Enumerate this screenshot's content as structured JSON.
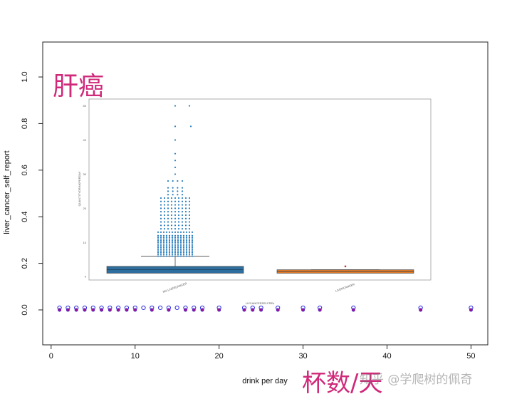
{
  "overlay": {
    "title_top": "肝癌",
    "title_bottom": "杯数/天",
    "watermark": "知乎 @学爬树的佩奇"
  },
  "colors": {
    "title_accent": "#d0297a",
    "point_outline": "#2a2ae0",
    "point_fill": "#a0108f",
    "box_blue": "#2f6f9f",
    "box_orange": "#e07a28",
    "scatter_blue": "#2b7fbf"
  },
  "chart_data": [
    {
      "type": "scatter",
      "xlabel": "drink per day",
      "ylabel": "liver_cancer_self_report",
      "xlim": [
        -1,
        52
      ],
      "ylim": [
        -0.15,
        1.15
      ],
      "xticks": [
        0,
        10,
        20,
        30,
        40,
        50
      ],
      "yticks": [
        0.0,
        0.2,
        0.4,
        0.6,
        0.8,
        1.0
      ],
      "xtick_labels": [
        "0",
        "10",
        "20",
        "30",
        "40",
        "50"
      ],
      "ytick_labels": [
        "0.0",
        "0.2",
        "0.4",
        "0.6",
        "0.8",
        "1.0"
      ],
      "points_outline": [
        1,
        2,
        3,
        4,
        5,
        6,
        7,
        8,
        9,
        10,
        11,
        12,
        13,
        14,
        15,
        16,
        17,
        18,
        20,
        23,
        24,
        25,
        27,
        30,
        32,
        36,
        44,
        50
      ],
      "points_filled": [
        1,
        2,
        3,
        4,
        5,
        6,
        7,
        8,
        9,
        10,
        12,
        14,
        16,
        17,
        18,
        20,
        23,
        24,
        25,
        27,
        30,
        32,
        36,
        44,
        50
      ],
      "y": 0.0
    },
    {
      "type": "box",
      "xlabel": "LIVCANCERSELFREk",
      "ylabel": "QUANTITYDRINKPERDAY",
      "categories": [
        "NO LIVERCANCER",
        "LIVERCANCER"
      ],
      "ylim": [
        -1,
        52
      ],
      "yticks": [
        0,
        10,
        20,
        30,
        40,
        50
      ],
      "ytick_labels": [
        "0",
        "10",
        "20",
        "30",
        "40",
        "50"
      ],
      "boxes": [
        {
          "name": "NO LIVERCANCER",
          "q1": 1,
          "median": 2,
          "q3": 3,
          "whisker_low": 1,
          "whisker_high": 6
        },
        {
          "name": "LIVERCANCER",
          "q1": 1,
          "median": 1.5,
          "q3": 2,
          "whisker_low": 1,
          "whisker_high": 2
        }
      ],
      "outliers_no_cancer": [
        6,
        6.5,
        7,
        7.5,
        8,
        8.5,
        9,
        9.5,
        10,
        10.5,
        11,
        11.5,
        12,
        13,
        14,
        15,
        16,
        17,
        18,
        19,
        20,
        21,
        22,
        23,
        24,
        25,
        26,
        28,
        30,
        32,
        34,
        36,
        40,
        44,
        50
      ],
      "outliers_cancer": [
        3
      ]
    }
  ]
}
